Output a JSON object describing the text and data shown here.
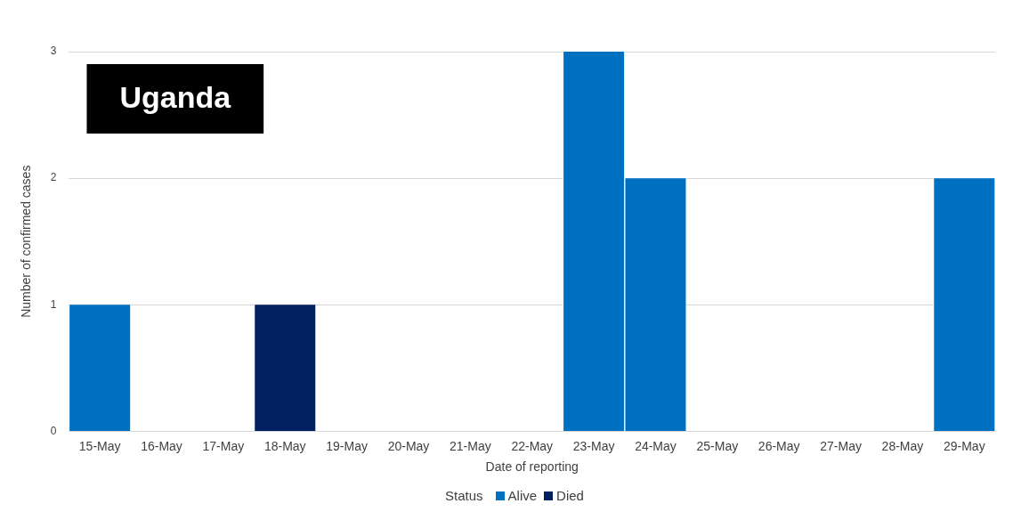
{
  "chart_data": {
    "type": "bar",
    "stacked": true,
    "xlabel": "Date of reporting",
    "ylabel": "Number of confirmed cases",
    "legend_title": "Status",
    "legend": "bottom",
    "grid": "y",
    "annotations": [
      "Uganda"
    ],
    "categories": [
      "15-May",
      "16-May",
      "17-May",
      "18-May",
      "19-May",
      "20-May",
      "21-May",
      "22-May",
      "23-May",
      "24-May",
      "25-May",
      "26-May",
      "27-May",
      "28-May",
      "29-May"
    ],
    "ylim": [
      0,
      3
    ],
    "yticks": [
      0,
      1,
      2,
      3
    ],
    "series": [
      {
        "name": "Alive",
        "color": "#0070c0",
        "values": [
          1,
          0,
          0,
          0,
          0,
          0,
          0,
          0,
          3,
          2,
          0,
          0,
          0,
          0,
          2
        ]
      },
      {
        "name": "Died",
        "color": "#002060",
        "values": [
          0,
          0,
          0,
          1,
          0,
          0,
          0,
          0,
          0,
          0,
          0,
          0,
          0,
          0,
          0
        ]
      }
    ]
  }
}
